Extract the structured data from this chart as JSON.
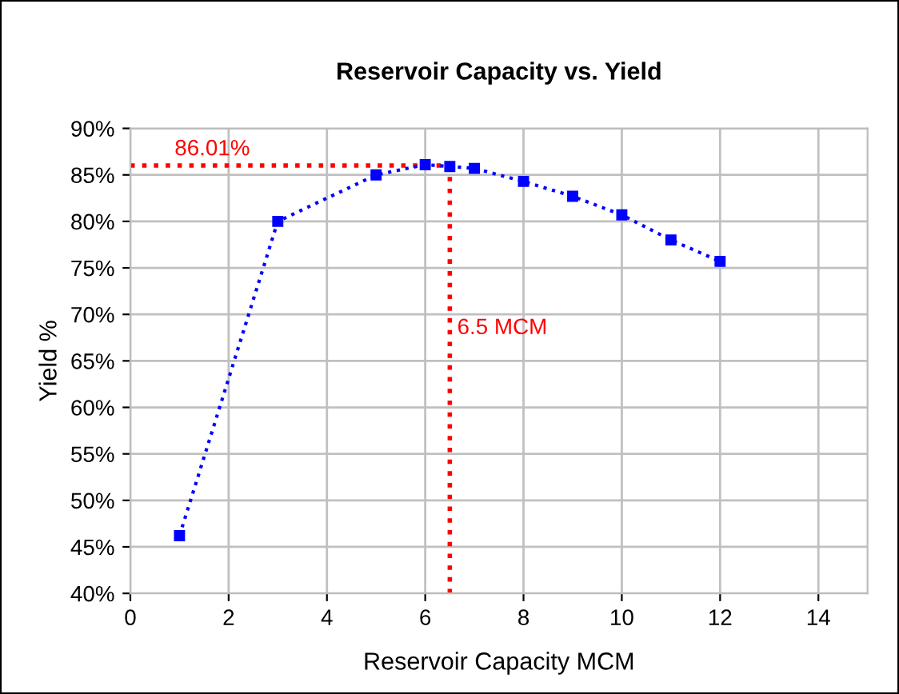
{
  "chart_data": {
    "type": "line",
    "title": "Reservoir Capacity vs. Yield",
    "xlabel": "Reservoir Capacity MCM",
    "ylabel": "Yield %",
    "series": [
      {
        "color": "#0000ff",
        "x": [
          1,
          3,
          5,
          6,
          6.5,
          7,
          8,
          9,
          10,
          11,
          12
        ],
        "values": [
          46.2,
          80.0,
          85.0,
          86.1,
          85.9,
          85.7,
          84.3,
          82.7,
          80.7,
          78.0,
          75.7
        ]
      }
    ],
    "xlim": [
      0,
      15
    ],
    "xticks": [
      0,
      2,
      4,
      6,
      8,
      10,
      12,
      14
    ],
    "ylim": [
      40,
      90
    ],
    "yticks": [
      {
        "value": 40,
        "label": "40%"
      },
      {
        "value": 45,
        "label": "45%"
      },
      {
        "value": 50,
        "label": "50%"
      },
      {
        "value": 55,
        "label": "55%"
      },
      {
        "value": 60,
        "label": "60%"
      },
      {
        "value": 65,
        "label": "65%"
      },
      {
        "value": 70,
        "label": "70%"
      },
      {
        "value": 75,
        "label": "75%"
      },
      {
        "value": 80,
        "label": "80%"
      },
      {
        "value": 85,
        "label": "85%"
      },
      {
        "value": 90,
        "label": "90%"
      }
    ],
    "ref_lines": [
      {
        "axis": "y",
        "value": 86.01,
        "label": "86.01%",
        "color": "#ff0000",
        "line_style": "dotted"
      },
      {
        "axis": "x",
        "value": 6.5,
        "label": "6.5 MCM",
        "color": "#ff0000",
        "line_style": "dotted"
      }
    ],
    "grid": true,
    "marker": "square",
    "line_style": "dotted"
  }
}
